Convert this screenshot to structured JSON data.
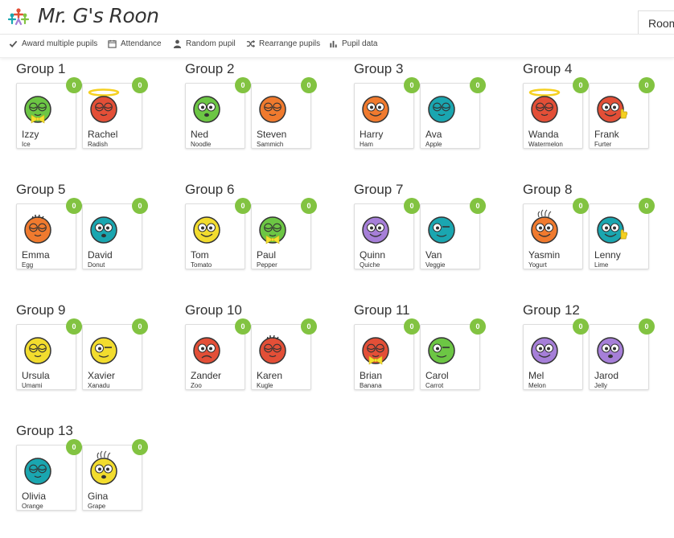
{
  "app": {
    "title": "Mr. G's Roon",
    "room_tab": "Room",
    "logo_icon": "people-logo-icon"
  },
  "toolbar": [
    {
      "icon": "check-icon",
      "label": "Award multiple pupils"
    },
    {
      "icon": "calendar-icon",
      "label": "Attendance"
    },
    {
      "icon": "person-icon",
      "label": "Random pupil"
    },
    {
      "icon": "shuffle-icon",
      "label": "Rearrange pupils"
    },
    {
      "icon": "bar-chart-icon",
      "label": "Pupil data"
    }
  ],
  "colors": {
    "badge": "#82c341",
    "green": "#6cc644",
    "orange": "#f07a2e",
    "red": "#e34f37",
    "teal": "#1aa6b0",
    "yellow": "#f2dc2e",
    "purple": "#a67fd8",
    "halo": "#f5d020",
    "bowtie": "#f5e12e"
  },
  "groups": [
    {
      "title": "Group 1",
      "pupils": [
        {
          "name": "Izzy",
          "nickname": "Ice",
          "points": "0",
          "avatar": {
            "color": "#6cc644",
            "face": "closed",
            "accessory": "bowtie"
          }
        },
        {
          "name": "Rachel",
          "nickname": "Radish",
          "points": "0",
          "avatar": {
            "color": "#e34f37",
            "face": "closed",
            "accessory": "halo"
          }
        }
      ]
    },
    {
      "title": "Group 2",
      "pupils": [
        {
          "name": "Ned",
          "nickname": "Noodle",
          "points": "0",
          "avatar": {
            "color": "#6cc644",
            "face": "shock",
            "accessory": "none"
          }
        },
        {
          "name": "Steven",
          "nickname": "Sammich",
          "points": "0",
          "avatar": {
            "color": "#f07a2e",
            "face": "closed",
            "accessory": "none"
          }
        }
      ]
    },
    {
      "title": "Group 3",
      "pupils": [
        {
          "name": "Harry",
          "nickname": "Ham",
          "points": "0",
          "avatar": {
            "color": "#f07a2e",
            "face": "smile",
            "accessory": "none"
          }
        },
        {
          "name": "Ava",
          "nickname": "Apple",
          "points": "0",
          "avatar": {
            "color": "#1aa6b0",
            "face": "closed",
            "accessory": "wings"
          }
        }
      ]
    },
    {
      "title": "Group 4",
      "pupils": [
        {
          "name": "Wanda",
          "nickname": "Watermelon",
          "points": "0",
          "avatar": {
            "color": "#e34f37",
            "face": "closed",
            "accessory": "halo"
          }
        },
        {
          "name": "Frank",
          "nickname": "Furter",
          "points": "0",
          "avatar": {
            "color": "#e34f37",
            "face": "smile",
            "accessory": "thumb"
          }
        }
      ]
    },
    {
      "title": "Group 5",
      "pupils": [
        {
          "name": "Emma",
          "nickname": "Egg",
          "points": "0",
          "avatar": {
            "color": "#f07a2e",
            "face": "closed",
            "accessory": "hair"
          }
        },
        {
          "name": "David",
          "nickname": "Donut",
          "points": "0",
          "avatar": {
            "color": "#1aa6b0",
            "face": "shock",
            "accessory": "none"
          }
        }
      ]
    },
    {
      "title": "Group 6",
      "pupils": [
        {
          "name": "Tom",
          "nickname": "Tomato",
          "points": "0",
          "avatar": {
            "color": "#f2dc2e",
            "face": "smile",
            "accessory": "none"
          }
        },
        {
          "name": "Paul",
          "nickname": "Pepper",
          "points": "0",
          "avatar": {
            "color": "#6cc644",
            "face": "closed",
            "accessory": "bowtie"
          }
        }
      ]
    },
    {
      "title": "Group 7",
      "pupils": [
        {
          "name": "Quinn",
          "nickname": "Quiche",
          "points": "0",
          "avatar": {
            "color": "#a67fd8",
            "face": "smile",
            "accessory": "none"
          }
        },
        {
          "name": "Van",
          "nickname": "Veggie",
          "points": "0",
          "avatar": {
            "color": "#1aa6b0",
            "face": "wink",
            "accessory": "none"
          }
        }
      ]
    },
    {
      "title": "Group 8",
      "pupils": [
        {
          "name": "Yasmin",
          "nickname": "Yogurt",
          "points": "0",
          "avatar": {
            "color": "#f07a2e",
            "face": "smile",
            "accessory": "frizz"
          }
        },
        {
          "name": "Lenny",
          "nickname": "Lime",
          "points": "0",
          "avatar": {
            "color": "#1aa6b0",
            "face": "smile",
            "accessory": "thumb"
          }
        }
      ]
    },
    {
      "title": "Group 9",
      "pupils": [
        {
          "name": "Ursula",
          "nickname": "Umami",
          "points": "0",
          "avatar": {
            "color": "#f2dc2e",
            "face": "closed",
            "accessory": "none"
          }
        },
        {
          "name": "Xavier",
          "nickname": "Xanadu",
          "points": "0",
          "avatar": {
            "color": "#f2dc2e",
            "face": "wink",
            "accessory": "none"
          }
        }
      ]
    },
    {
      "title": "Group 10",
      "pupils": [
        {
          "name": "Zander",
          "nickname": "Zoo",
          "points": "0",
          "avatar": {
            "color": "#e34f37",
            "face": "sad",
            "accessory": "none"
          }
        },
        {
          "name": "Karen",
          "nickname": "Kugle",
          "points": "0",
          "avatar": {
            "color": "#e34f37",
            "face": "closed",
            "accessory": "hair"
          }
        }
      ]
    },
    {
      "title": "Group 11",
      "pupils": [
        {
          "name": "Brian",
          "nickname": "Banana",
          "points": "0",
          "avatar": {
            "color": "#e34f37",
            "face": "closed",
            "accessory": "bowtie"
          }
        },
        {
          "name": "Carol",
          "nickname": "Carrot",
          "points": "0",
          "avatar": {
            "color": "#6cc644",
            "face": "wink",
            "accessory": "none"
          }
        }
      ]
    },
    {
      "title": "Group 12",
      "pupils": [
        {
          "name": "Mel",
          "nickname": "Melon",
          "points": "0",
          "avatar": {
            "color": "#a67fd8",
            "face": "smile",
            "accessory": "none"
          }
        },
        {
          "name": "Jarod",
          "nickname": "Jelly",
          "points": "0",
          "avatar": {
            "color": "#a67fd8",
            "face": "shock",
            "accessory": "none"
          }
        }
      ]
    },
    {
      "title": "Group 13",
      "pupils": [
        {
          "name": "Olivia",
          "nickname": "Orange",
          "points": "0",
          "avatar": {
            "color": "#1aa6b0",
            "face": "closed",
            "accessory": "wings"
          }
        },
        {
          "name": "Gina",
          "nickname": "Grape",
          "points": "0",
          "avatar": {
            "color": "#f2dc2e",
            "face": "shock",
            "accessory": "frizz"
          }
        }
      ]
    }
  ]
}
